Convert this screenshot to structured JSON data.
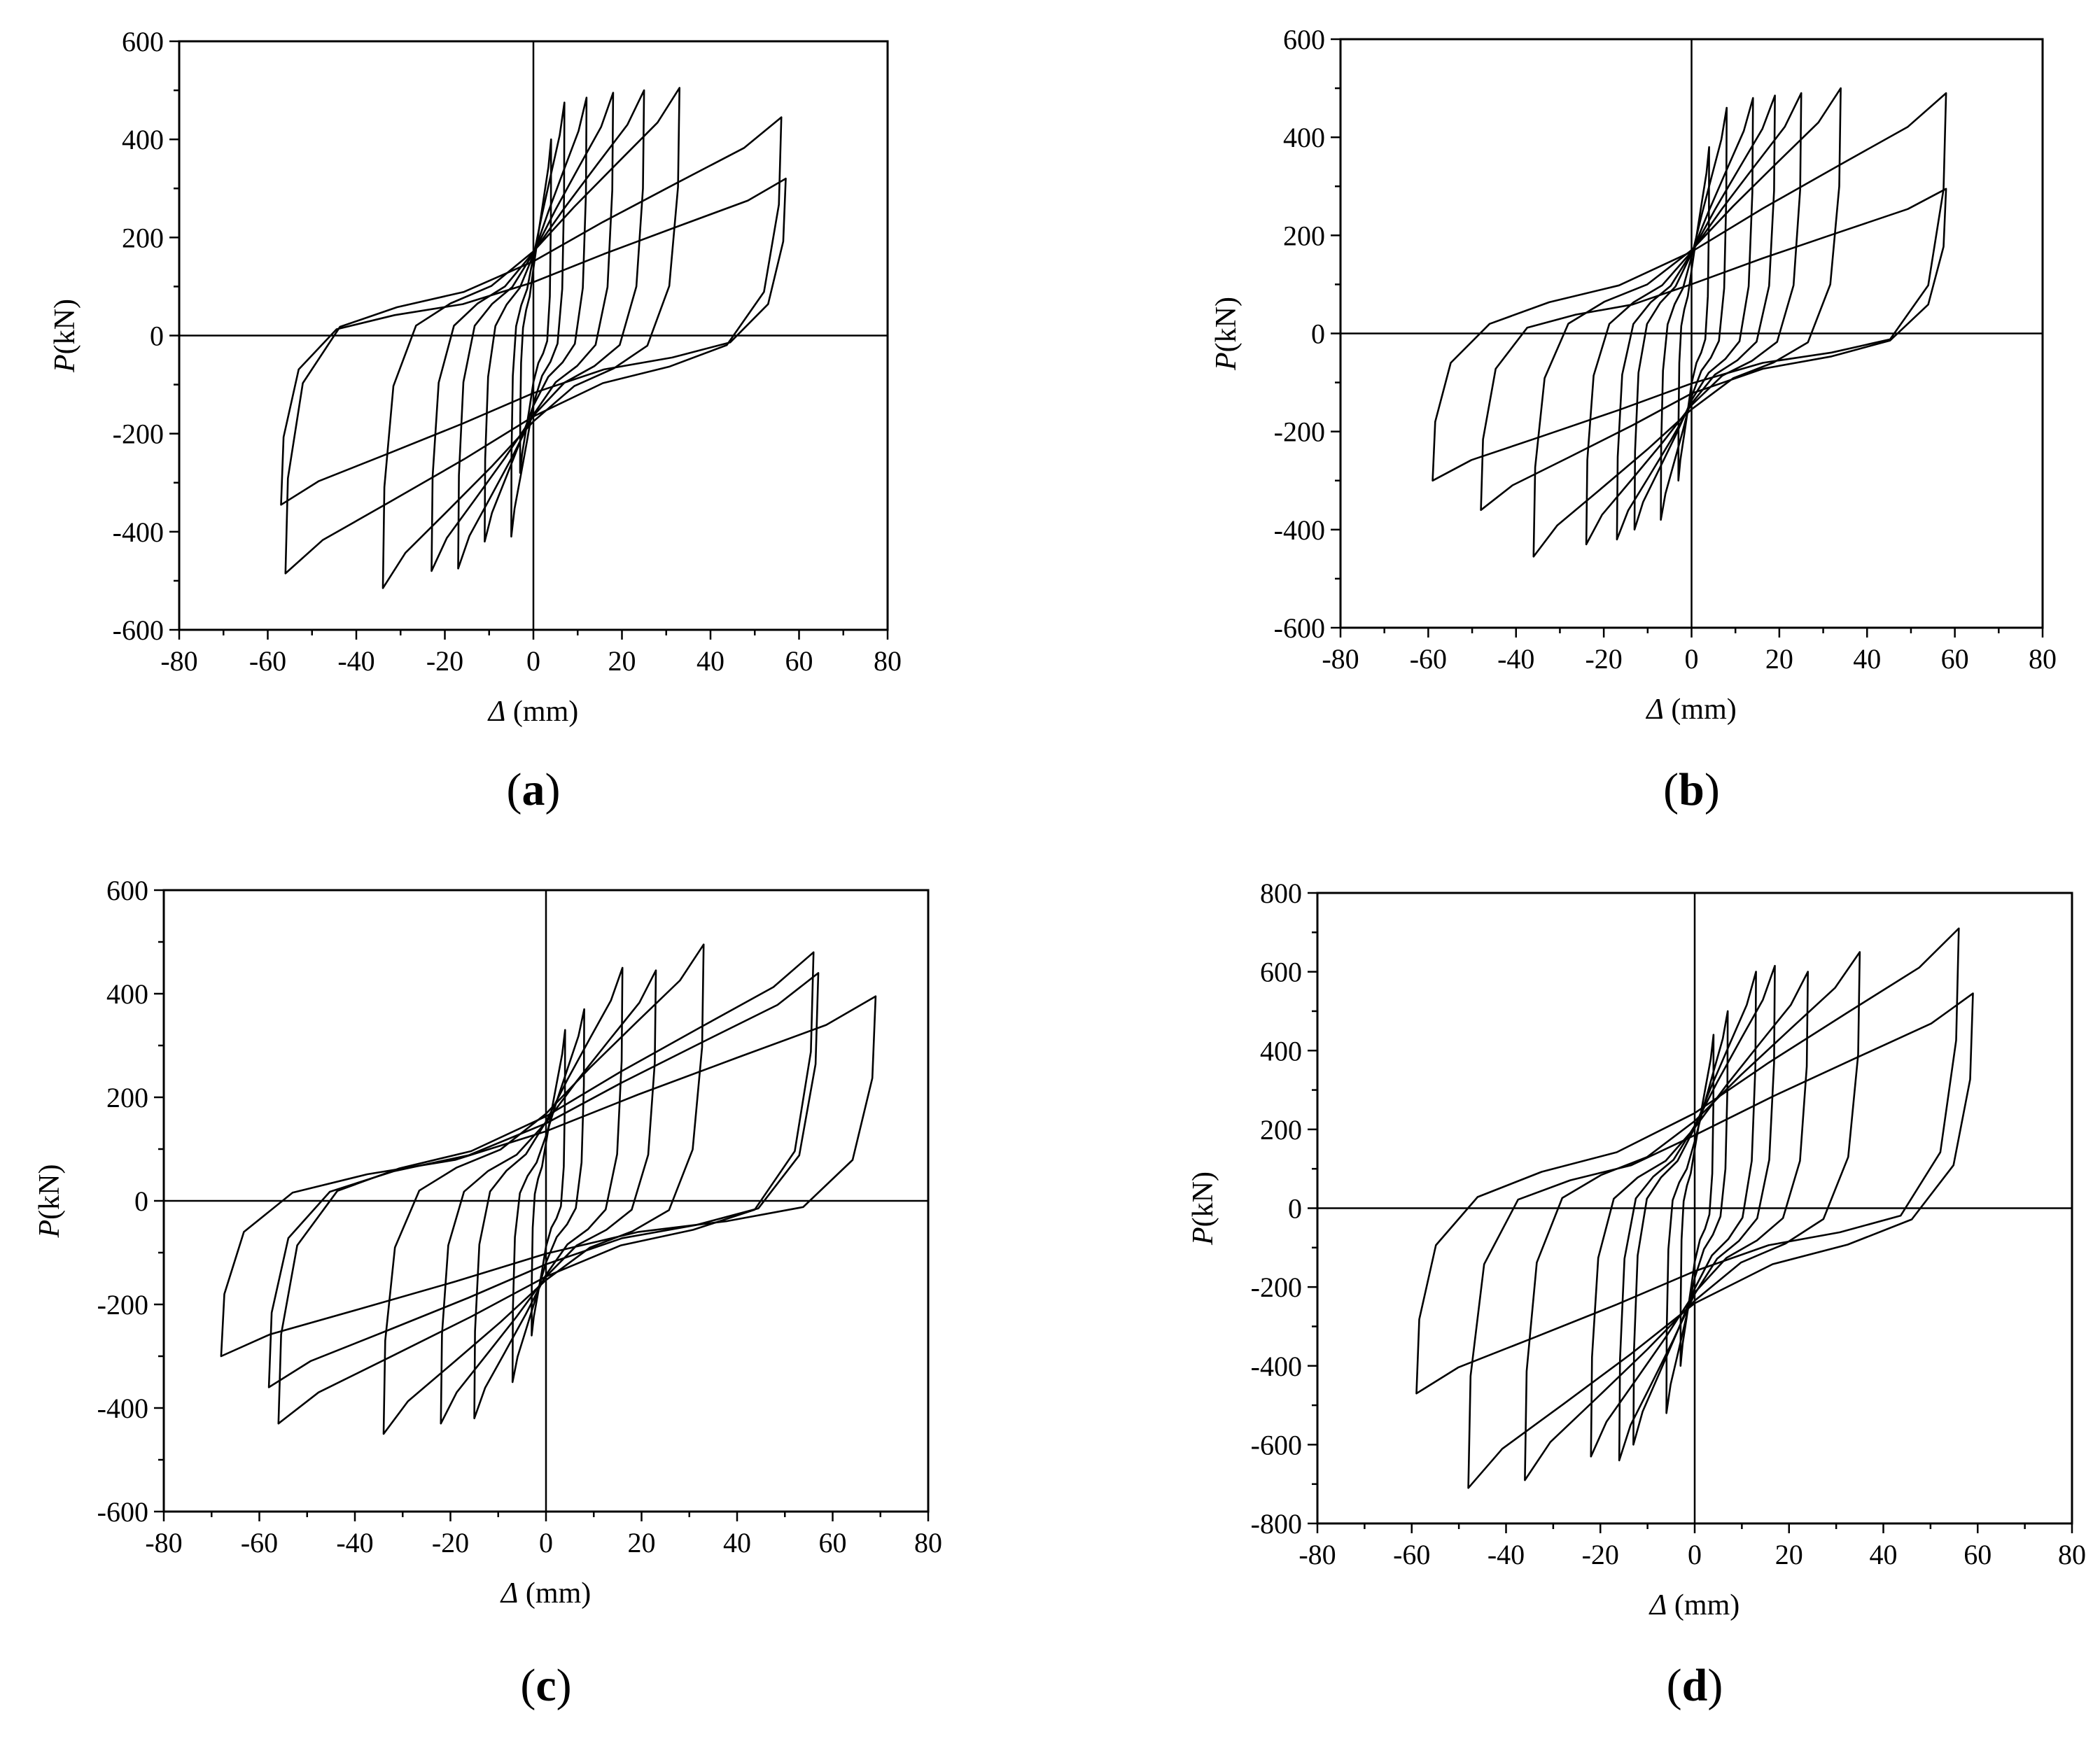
{
  "colors": {
    "line": "#000000",
    "background": "#ffffff"
  },
  "chart_data": [
    {
      "type": "line",
      "panel_label": "a",
      "xlabel": {
        "symbol": "Δ",
        "unit": " (mm)"
      },
      "ylabel": {
        "symbol": "P",
        "unit": "(kN)"
      },
      "xlim": [
        -80,
        80
      ],
      "ylim": [
        -600,
        600
      ],
      "xticks": [
        -80,
        -60,
        -40,
        -20,
        0,
        20,
        40,
        60,
        80
      ],
      "yticks": [
        -600,
        -400,
        -200,
        0,
        200,
        400,
        600
      ],
      "grid": false,
      "loops": [
        {
          "xmax": 4,
          "ymax": 400,
          "xmin": -3,
          "ymin": -280
        },
        {
          "xmax": 7,
          "ymax": 475,
          "xmin": -5,
          "ymin": -410
        },
        {
          "xmax": 12,
          "ymax": 485,
          "xmin": -11,
          "ymin": -420
        },
        {
          "xmax": 18,
          "ymax": 495,
          "xmin": -17,
          "ymin": -475
        },
        {
          "xmax": 25,
          "ymax": 500,
          "xmin": -23,
          "ymin": -480
        },
        {
          "xmax": 33,
          "ymax": 505,
          "xmin": -34,
          "ymin": -515
        },
        {
          "xmax": 56,
          "ymax": 445,
          "xmin": -56,
          "ymin": -485
        },
        {
          "xmax": 57,
          "ymax": 320,
          "xmin": -57,
          "ymin": -345
        }
      ]
    },
    {
      "type": "line",
      "panel_label": "b",
      "xlabel": {
        "symbol": "Δ",
        "unit": " (mm)"
      },
      "ylabel": {
        "symbol": "P",
        "unit": "(kN)"
      },
      "xlim": [
        -80,
        80
      ],
      "ylim": [
        -600,
        600
      ],
      "xticks": [
        -80,
        -60,
        -40,
        -20,
        0,
        20,
        40,
        60,
        80
      ],
      "yticks": [
        -600,
        -400,
        -200,
        0,
        200,
        400,
        600
      ],
      "grid": false,
      "loops": [
        {
          "xmax": 4,
          "ymax": 380,
          "xmin": -3,
          "ymin": -300
        },
        {
          "xmax": 8,
          "ymax": 460,
          "xmin": -7,
          "ymin": -380
        },
        {
          "xmax": 14,
          "ymax": 480,
          "xmin": -13,
          "ymin": -400
        },
        {
          "xmax": 19,
          "ymax": 485,
          "xmin": -17,
          "ymin": -420
        },
        {
          "xmax": 25,
          "ymax": 490,
          "xmin": -24,
          "ymin": -430
        },
        {
          "xmax": 34,
          "ymax": 500,
          "xmin": -36,
          "ymin": -455
        },
        {
          "xmax": 58,
          "ymax": 490,
          "xmin": -59,
          "ymin": -300
        },
        {
          "xmax": 58,
          "ymax": 295,
          "xmin": -48,
          "ymin": -360
        }
      ]
    },
    {
      "type": "line",
      "panel_label": "c",
      "xlabel": {
        "symbol": "Δ",
        "unit": " (mm)"
      },
      "ylabel": {
        "symbol": "P",
        "unit": "(kN)"
      },
      "xlim": [
        -80,
        80
      ],
      "ylim": [
        -600,
        600
      ],
      "xticks": [
        -80,
        -60,
        -40,
        -20,
        0,
        20,
        40,
        60,
        80
      ],
      "yticks": [
        -600,
        -400,
        -200,
        0,
        200,
        400,
        600
      ],
      "grid": false,
      "loops": [
        {
          "xmax": 4,
          "ymax": 330,
          "xmin": -3,
          "ymin": -260
        },
        {
          "xmax": 8,
          "ymax": 370,
          "xmin": -7,
          "ymin": -350
        },
        {
          "xmax": 16,
          "ymax": 450,
          "xmin": -15,
          "ymin": -420
        },
        {
          "xmax": 23,
          "ymax": 445,
          "xmin": -22,
          "ymin": -430
        },
        {
          "xmax": 33,
          "ymax": 495,
          "xmin": -34,
          "ymin": -450
        },
        {
          "xmax": 56,
          "ymax": 480,
          "xmin": -56,
          "ymin": -430
        },
        {
          "xmax": 57,
          "ymax": 440,
          "xmin": -58,
          "ymin": -360
        },
        {
          "xmax": 69,
          "ymax": 395,
          "xmin": -68,
          "ymin": -300
        }
      ]
    },
    {
      "type": "line",
      "panel_label": "d",
      "xlabel": {
        "symbol": "Δ",
        "unit": " (mm)"
      },
      "ylabel": {
        "symbol": "P",
        "unit": "(kN)"
      },
      "xlim": [
        -80,
        80
      ],
      "ylim": [
        -800,
        800
      ],
      "xticks": [
        -80,
        -60,
        -40,
        -20,
        0,
        20,
        40,
        60,
        80
      ],
      "yticks": [
        -800,
        -600,
        -400,
        -200,
        0,
        200,
        400,
        600,
        800
      ],
      "grid": false,
      "loops": [
        {
          "xmax": 4,
          "ymax": 440,
          "xmin": -3,
          "ymin": -400
        },
        {
          "xmax": 7,
          "ymax": 500,
          "xmin": -6,
          "ymin": -520
        },
        {
          "xmax": 13,
          "ymax": 600,
          "xmin": -13,
          "ymin": -600
        },
        {
          "xmax": 17,
          "ymax": 615,
          "xmin": -16,
          "ymin": -640
        },
        {
          "xmax": 24,
          "ymax": 600,
          "xmin": -22,
          "ymin": -630
        },
        {
          "xmax": 35,
          "ymax": 650,
          "xmin": -36,
          "ymin": -690
        },
        {
          "xmax": 56,
          "ymax": 710,
          "xmin": -59,
          "ymin": -470
        },
        {
          "xmax": 59,
          "ymax": 545,
          "xmin": -48,
          "ymin": -710
        }
      ]
    }
  ]
}
